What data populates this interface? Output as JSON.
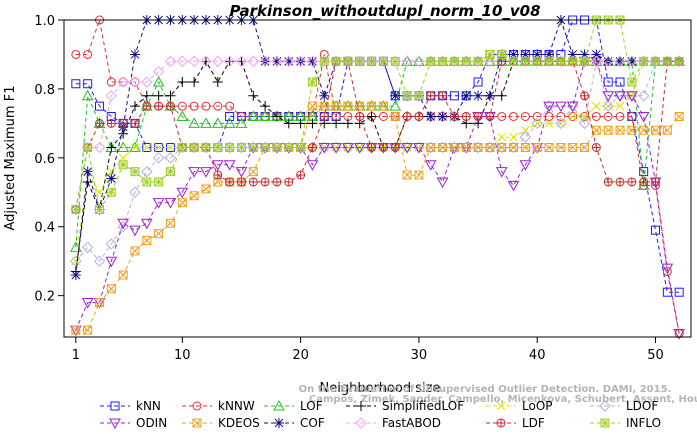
{
  "chart_data": {
    "type": "line",
    "title": "Parkinson_withoutdupl_norm_10_v08",
    "xlabel": "Neighborhood size",
    "ylabel": "Adjusted Maximum F1",
    "xlim": [
      0,
      53
    ],
    "ylim": [
      0.08,
      1.0
    ],
    "xticks": [
      1,
      10,
      20,
      30,
      40,
      50
    ],
    "yticks": [
      0.2,
      0.4,
      0.6,
      0.8,
      1.0
    ],
    "x": [
      1,
      2,
      3,
      4,
      5,
      6,
      7,
      8,
      9,
      10,
      11,
      12,
      13,
      14,
      15,
      16,
      17,
      18,
      19,
      20,
      21,
      22,
      23,
      24,
      25,
      26,
      27,
      28,
      29,
      30,
      31,
      32,
      33,
      34,
      35,
      36,
      37,
      38,
      39,
      40,
      41,
      42,
      43,
      44,
      45,
      46,
      47,
      48,
      49,
      50,
      51,
      52
    ],
    "series": [
      {
        "name": "kNN",
        "color": "#1a1aff",
        "marker": "square",
        "values": [
          0.815,
          0.815,
          0.75,
          0.72,
          0.7,
          0.7,
          0.63,
          0.63,
          0.63,
          0.63,
          0.63,
          0.63,
          0.63,
          0.72,
          0.72,
          0.72,
          0.72,
          0.72,
          0.72,
          0.72,
          0.72,
          0.72,
          0.72,
          0.88,
          0.88,
          0.88,
          0.88,
          0.78,
          0.78,
          0.78,
          0.78,
          0.78,
          0.78,
          0.78,
          0.82,
          0.9,
          0.9,
          0.9,
          0.9,
          0.9,
          0.9,
          0.9,
          1.0,
          1.0,
          1.0,
          0.82,
          0.82,
          0.72,
          0.56,
          0.39,
          0.21,
          0.21
        ]
      },
      {
        "name": "kNNW",
        "color": "#e03030",
        "marker": "circle",
        "values": [
          0.9,
          0.9,
          1.0,
          0.82,
          0.82,
          0.82,
          0.75,
          0.75,
          0.75,
          0.75,
          0.75,
          0.75,
          0.75,
          0.75,
          0.72,
          0.72,
          0.72,
          0.72,
          0.72,
          0.72,
          0.72,
          0.9,
          0.72,
          0.72,
          0.72,
          0.72,
          0.72,
          0.72,
          0.72,
          0.72,
          0.72,
          0.72,
          0.72,
          0.72,
          0.72,
          0.72,
          0.72,
          0.72,
          0.72,
          0.72,
          0.72,
          0.72,
          0.72,
          0.72,
          0.72,
          0.72,
          0.72,
          0.72,
          0.52,
          0.52,
          0.27,
          0.09
        ]
      },
      {
        "name": "LOF",
        "color": "#22c022",
        "marker": "triangle",
        "values": [
          0.34,
          0.78,
          0.7,
          0.63,
          0.63,
          0.63,
          0.75,
          0.82,
          0.75,
          0.72,
          0.7,
          0.7,
          0.7,
          0.7,
          0.7,
          0.72,
          0.72,
          0.72,
          0.72,
          0.72,
          0.72,
          0.75,
          0.75,
          0.75,
          0.75,
          0.75,
          0.75,
          0.75,
          0.88,
          0.88,
          0.88,
          0.88,
          0.88,
          0.88,
          0.88,
          0.88,
          0.88,
          0.88,
          0.88,
          0.88,
          0.88,
          0.88,
          0.88,
          0.88,
          0.88,
          0.88,
          0.88,
          0.88,
          0.52,
          0.88,
          0.88,
          0.88
        ]
      },
      {
        "name": "SimplifiedLOF",
        "color": "#000000",
        "marker": "plus",
        "values": [
          0.27,
          0.53,
          0.45,
          0.63,
          0.67,
          0.75,
          0.78,
          0.78,
          0.78,
          0.82,
          0.82,
          0.88,
          0.82,
          0.88,
          0.88,
          0.78,
          0.75,
          0.72,
          0.7,
          0.7,
          0.7,
          0.7,
          0.7,
          0.7,
          0.7,
          0.72,
          0.63,
          0.63,
          0.72,
          0.72,
          0.72,
          0.72,
          0.72,
          0.7,
          0.7,
          0.78,
          0.78,
          0.88,
          0.88,
          0.88,
          0.88,
          0.88,
          0.88,
          0.88,
          0.88,
          0.88,
          0.88,
          0.88,
          0.88,
          0.88,
          0.88,
          0.88
        ]
      },
      {
        "name": "LoOP",
        "color": "#e0e000",
        "marker": "x",
        "values": [
          0.3,
          0.56,
          0.5,
          0.56,
          0.6,
          0.63,
          0.63,
          0.63,
          0.63,
          0.63,
          0.63,
          0.63,
          0.63,
          0.63,
          0.63,
          0.63,
          0.63,
          0.63,
          0.63,
          0.63,
          0.63,
          0.63,
          0.63,
          0.63,
          0.63,
          0.63,
          0.63,
          0.63,
          0.63,
          0.63,
          0.63,
          0.63,
          0.63,
          0.63,
          0.63,
          0.63,
          0.66,
          0.66,
          0.68,
          0.7,
          0.7,
          0.7,
          0.72,
          0.72,
          0.75,
          0.75,
          0.75,
          0.78,
          0.88,
          0.88,
          0.88,
          0.88
        ]
      },
      {
        "name": "LDOF",
        "color": "#b0b0e0",
        "marker": "diamond",
        "values": [
          0.3,
          0.34,
          0.3,
          0.35,
          0.4,
          0.5,
          0.56,
          0.6,
          0.6,
          0.63,
          0.63,
          0.63,
          0.63,
          0.63,
          0.63,
          0.63,
          0.63,
          0.63,
          0.63,
          0.63,
          0.63,
          0.63,
          0.63,
          0.63,
          0.63,
          0.63,
          0.63,
          0.63,
          0.63,
          0.63,
          0.63,
          0.63,
          0.63,
          0.63,
          0.63,
          0.63,
          0.63,
          0.63,
          0.66,
          0.7,
          0.75,
          0.7,
          0.75,
          0.7,
          0.88,
          0.75,
          0.78,
          0.78,
          0.78,
          0.88,
          0.88,
          0.88
        ]
      },
      {
        "name": "ODIN",
        "color": "#9a20d0",
        "marker": "triangle-down",
        "values": [
          0.1,
          0.18,
          0.18,
          0.3,
          0.41,
          0.39,
          0.41,
          0.47,
          0.47,
          0.5,
          0.56,
          0.56,
          0.58,
          0.58,
          0.56,
          0.63,
          0.63,
          0.63,
          0.63,
          0.63,
          0.58,
          0.63,
          0.63,
          0.63,
          0.63,
          0.63,
          0.63,
          0.63,
          0.63,
          0.63,
          0.58,
          0.53,
          0.63,
          0.63,
          0.72,
          0.72,
          0.56,
          0.52,
          0.58,
          0.63,
          0.75,
          0.75,
          0.75,
          0.88,
          0.88,
          0.78,
          0.78,
          0.78,
          0.72,
          0.53,
          0.28,
          0.09
        ]
      },
      {
        "name": "KDEOS",
        "color": "#f0a020",
        "marker": "square-x",
        "values": [
          0.1,
          0.1,
          0.18,
          0.22,
          0.26,
          0.33,
          0.36,
          0.38,
          0.41,
          0.47,
          0.49,
          0.51,
          0.53,
          0.53,
          0.53,
          0.56,
          0.63,
          0.63,
          0.63,
          0.63,
          0.75,
          0.75,
          0.75,
          0.75,
          0.75,
          0.75,
          0.75,
          0.72,
          0.55,
          0.55,
          0.63,
          0.63,
          0.63,
          0.63,
          0.63,
          0.63,
          0.63,
          0.63,
          0.63,
          0.63,
          0.63,
          0.63,
          0.63,
          0.63,
          0.68,
          0.68,
          0.68,
          0.68,
          0.68,
          0.68,
          0.68,
          0.72
        ]
      },
      {
        "name": "COF",
        "color": "#101080",
        "marker": "asterisk",
        "values": [
          0.26,
          0.56,
          0.45,
          0.54,
          0.69,
          0.9,
          1.0,
          1.0,
          1.0,
          1.0,
          1.0,
          1.0,
          1.0,
          1.0,
          1.0,
          1.0,
          0.88,
          0.88,
          0.88,
          0.88,
          0.88,
          0.78,
          0.88,
          0.88,
          0.88,
          0.88,
          0.88,
          0.78,
          0.78,
          0.78,
          0.72,
          0.72,
          0.72,
          0.78,
          0.78,
          0.78,
          0.9,
          0.9,
          0.9,
          0.9,
          0.9,
          1.0,
          0.9,
          0.9,
          0.9,
          0.88,
          0.88,
          0.88,
          0.88,
          0.88,
          0.88,
          0.88
        ]
      },
      {
        "name": "FastABOD",
        "color": "#f0a0f0",
        "marker": "diamond",
        "values": [
          0.45,
          0.63,
          0.63,
          0.78,
          0.82,
          0.82,
          0.82,
          0.85,
          0.88,
          0.88,
          0.88,
          0.88,
          0.88,
          0.88,
          0.88,
          0.88,
          0.88,
          0.88,
          0.88,
          0.88,
          0.88,
          0.88,
          0.88,
          0.88,
          0.88,
          0.88,
          0.88,
          0.88,
          0.88,
          0.88,
          0.88,
          0.88,
          0.88,
          0.88,
          0.88,
          0.88,
          0.88,
          0.88,
          0.88,
          0.88,
          0.88,
          0.88,
          0.88,
          0.88,
          0.88,
          0.88,
          0.88,
          0.88,
          0.88,
          0.88,
          0.88,
          0.88
        ]
      },
      {
        "name": "LDF",
        "color": "#c03030",
        "marker": "circle-plus",
        "values": [
          0.45,
          0.63,
          0.7,
          0.7,
          0.7,
          0.7,
          0.75,
          0.75,
          0.75,
          0.63,
          0.63,
          0.63,
          0.55,
          0.53,
          0.53,
          0.53,
          0.53,
          0.53,
          0.53,
          0.55,
          0.63,
          0.72,
          0.88,
          0.88,
          0.72,
          0.63,
          0.63,
          0.63,
          0.72,
          0.72,
          0.78,
          0.78,
          0.72,
          0.72,
          0.72,
          0.72,
          0.88,
          0.88,
          0.88,
          0.88,
          0.88,
          0.88,
          0.88,
          0.78,
          0.63,
          0.53,
          0.53,
          0.53,
          0.53,
          0.53,
          0.88,
          0.88
        ]
      },
      {
        "name": "INFLO",
        "color": "#a0d020",
        "marker": "square-asterisk",
        "values": [
          0.45,
          0.63,
          0.45,
          0.5,
          0.58,
          0.56,
          0.53,
          0.53,
          0.56,
          0.63,
          0.63,
          0.63,
          0.63,
          0.63,
          0.63,
          0.63,
          0.63,
          0.63,
          0.63,
          0.63,
          0.82,
          0.88,
          0.88,
          0.88,
          0.88,
          0.88,
          0.88,
          0.88,
          0.78,
          0.78,
          0.88,
          0.88,
          0.88,
          0.88,
          0.88,
          0.9,
          0.9,
          0.88,
          0.88,
          0.88,
          0.88,
          0.88,
          0.88,
          0.88,
          1.0,
          1.0,
          1.0,
          0.82,
          0.88,
          0.88,
          0.88,
          0.88
        ]
      }
    ],
    "legend_position": "bottom",
    "grid": false
  },
  "watermark": "Campos, Zimek, Sander, Campello, Micenkova, Schubert, Assent, Houle",
  "watermark_line1": "On the Evaluation of Unsupervised Outlier Detection. DAMI, 2015."
}
